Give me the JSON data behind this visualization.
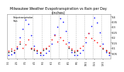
{
  "title": "Milwaukee Weather Evapotranspiration vs Rain per Day\n(Inches)",
  "title_fontsize": 3.5,
  "background_color": "#ffffff",
  "grid_color": "#bbbbbb",
  "ylim": [
    0.0,
    0.42
  ],
  "xlim": [
    0.5,
    36.5
  ],
  "ytick_fontsize": 2.5,
  "xtick_fontsize": 2.3,
  "yticks": [
    0.05,
    0.1,
    0.15,
    0.2,
    0.25,
    0.3,
    0.35,
    0.4
  ],
  "ytick_labels": [
    "0.05",
    "0.1",
    "0.15",
    "0.2",
    "0.25",
    "0.3",
    "0.35",
    "0.4"
  ],
  "et_color": "#0000ff",
  "rain_color": "#ff0000",
  "black_color": "#000000",
  "legend_et": "Evapotranspiration",
  "legend_rain": "Rain",
  "vline_x": [
    3.5,
    6.5,
    9.5,
    12.5,
    15.5,
    18.5,
    21.5,
    24.5,
    27.5,
    30.5,
    33.5
  ],
  "xtick_pos": [
    1,
    4,
    7,
    10,
    13,
    16,
    19,
    22,
    25,
    28,
    31,
    34
  ],
  "xtick_labels_display": [
    "1/1",
    "2/1",
    "3/1",
    "4/1",
    "5/1",
    "6/1",
    "7/1",
    "8/1",
    "9/1",
    "10/1",
    "11/1",
    "12/1"
  ],
  "marker_size": 1.5,
  "et_x": [
    1,
    2,
    3,
    4,
    5,
    6,
    7,
    8,
    9,
    10,
    11,
    12,
    13,
    14,
    15,
    16,
    17,
    18,
    19,
    20,
    21,
    22,
    23,
    24,
    25,
    26,
    27,
    28,
    29,
    30,
    31,
    32,
    33,
    34,
    35,
    36
  ],
  "et_y": [
    0.03,
    0.04,
    0.05,
    0.1,
    0.2,
    0.28,
    0.37,
    0.33,
    0.22,
    0.12,
    0.05,
    0.03,
    0.03,
    0.05,
    0.07,
    0.14,
    0.23,
    0.3,
    0.38,
    0.35,
    0.26,
    0.15,
    0.06,
    0.03,
    0.03,
    0.05,
    0.08,
    0.15,
    0.24,
    0.31,
    0.39,
    0.34,
    0.25,
    0.14,
    0.06,
    0.03
  ],
  "rain_x": [
    1,
    2,
    3,
    4,
    5,
    6,
    7,
    8,
    9,
    10,
    11,
    12,
    13,
    14,
    15,
    16,
    17,
    18,
    19,
    20,
    21,
    22,
    23,
    24,
    25,
    26,
    27,
    28,
    29,
    30,
    31,
    32,
    33,
    34,
    35,
    36
  ],
  "rain_y": [
    0.07,
    0.09,
    0.08,
    0.11,
    0.16,
    0.1,
    0.13,
    0.18,
    0.1,
    0.09,
    0.08,
    0.06,
    0.09,
    0.1,
    0.12,
    0.18,
    0.22,
    0.16,
    0.2,
    0.17,
    0.14,
    0.11,
    0.09,
    0.07,
    0.08,
    0.1,
    0.12,
    0.2,
    0.24,
    0.19,
    0.17,
    0.15,
    0.12,
    0.1,
    0.08,
    0.06
  ],
  "black_x": [
    1,
    2,
    3,
    4,
    5,
    9,
    10,
    11,
    12,
    13,
    14,
    22,
    23,
    24,
    25,
    34,
    35,
    36
  ],
  "black_y": [
    0.06,
    0.07,
    0.06,
    0.09,
    0.14,
    0.09,
    0.08,
    0.07,
    0.05,
    0.08,
    0.09,
    0.1,
    0.08,
    0.06,
    0.07,
    0.09,
    0.07,
    0.05
  ]
}
